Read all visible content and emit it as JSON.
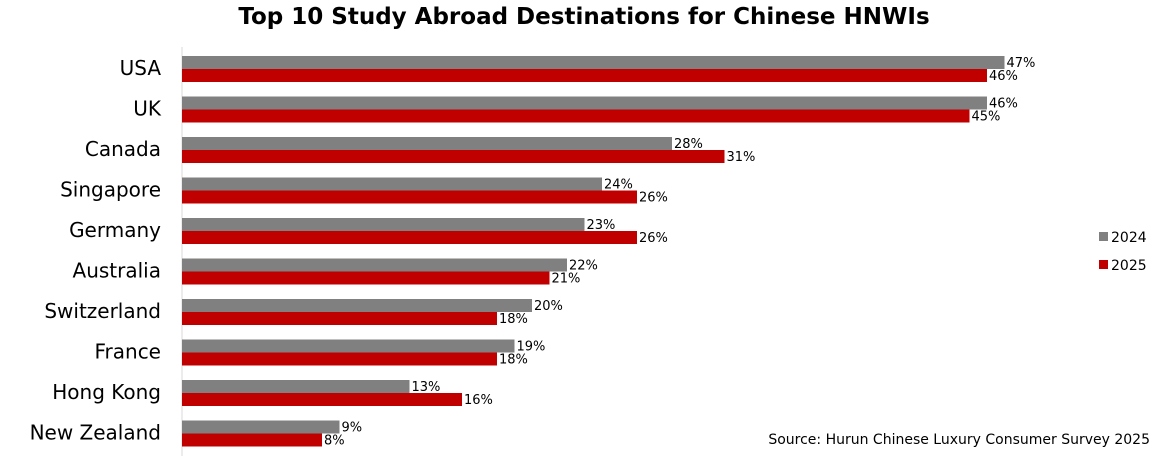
{
  "chart_data": {
    "type": "bar",
    "orientation": "horizontal",
    "title": "Top 10 Study Abroad Destinations for Chinese HNWIs",
    "categories": [
      "USA",
      "UK",
      "Canada",
      "Singapore",
      "Germany",
      "Australia",
      "Switzerland",
      "France",
      "Hong Kong",
      "New Zealand"
    ],
    "series": [
      {
        "name": "2024",
        "color": "#808080",
        "values": [
          47,
          46,
          28,
          24,
          23,
          22,
          20,
          19,
          13,
          9
        ],
        "labels": [
          "47%",
          "46%",
          "28%",
          "24%",
          "23%",
          "22%",
          "20%",
          "19%",
          "13%",
          "9%"
        ]
      },
      {
        "name": "2025",
        "color": "#C00000",
        "values": [
          46,
          45,
          31,
          26,
          26,
          21,
          18,
          18,
          16,
          8
        ],
        "labels": [
          "46%",
          "45%",
          "31%",
          "26%",
          "26%",
          "21%",
          "18%",
          "18%",
          "16%",
          "8%"
        ]
      }
    ],
    "xlim": [
      0,
      50
    ],
    "xlabel": "",
    "ylabel": "",
    "grid": false,
    "legend": "right"
  },
  "source": "Source: Hurun Chinese Luxury Consumer Survey 2025"
}
